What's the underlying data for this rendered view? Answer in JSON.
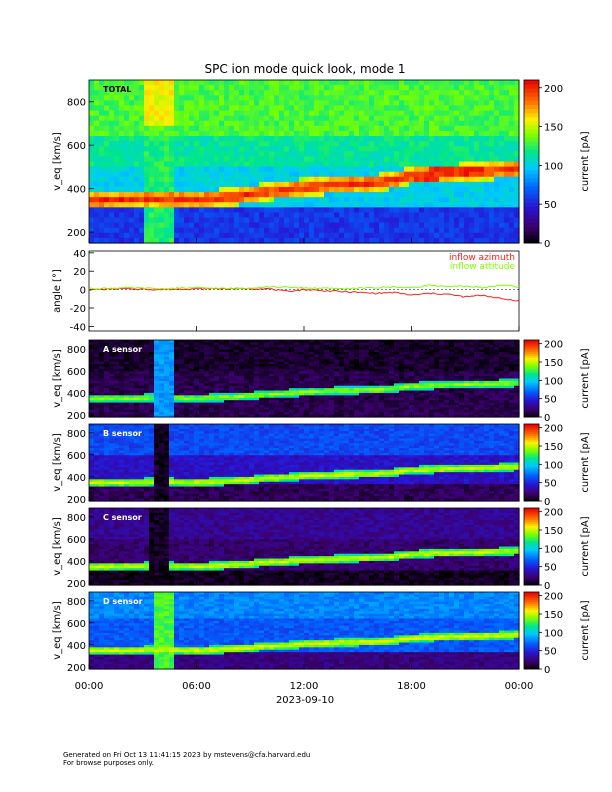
{
  "title": "SPC ion mode quick look, mode 1",
  "date_label": "2023-09-10",
  "footer": {
    "line1": "Generated on Fri Oct 13 11:41:15 2023 by mstevens@cfa.harvard.edu",
    "line2": "For browse purposes only."
  },
  "colors": {
    "red": "#ff2020",
    "green": "#7fff00"
  },
  "chart_data": [
    {
      "type": "heatmap",
      "panel_label": "TOTAL",
      "ylabel": "v_eq [km/s]",
      "yticks": [
        200,
        400,
        600,
        800
      ],
      "ylim": [
        150,
        900
      ],
      "xticks": [
        "00:00",
        "06:00",
        "12:00",
        "18:00",
        "00:00"
      ],
      "xlim_hours": [
        0,
        24
      ],
      "colorbar": {
        "label": "current [pA]",
        "ticks": [
          0,
          50,
          100,
          150,
          200
        ],
        "range": [
          0,
          210
        ]
      },
      "beam_speed_kms": {
        "hours": [
          0,
          2,
          4,
          6,
          8,
          10,
          12,
          14,
          16,
          17,
          18,
          20,
          22,
          24
        ],
        "speed": [
          345,
          350,
          355,
          350,
          360,
          385,
          405,
          420,
          425,
          440,
          460,
          470,
          480,
          490
        ]
      }
    },
    {
      "type": "line",
      "ylabel": "angle [°]",
      "yticks": [
        -40,
        -20,
        0,
        20,
        40
      ],
      "ylim": [
        -45,
        42
      ],
      "xlim_hours": [
        0,
        24
      ],
      "series": [
        {
          "name": "inflow azimuth",
          "color": "#ff2020",
          "hours": [
            0,
            2,
            4,
            6,
            8,
            10,
            11,
            12,
            14,
            16,
            17,
            18,
            19,
            20,
            21,
            22,
            23,
            24
          ],
          "values": [
            0,
            1,
            0,
            1,
            1,
            1,
            -2,
            0,
            -2,
            -4,
            -3,
            -6,
            -4,
            -5,
            -8,
            -6,
            -10,
            -12
          ]
        },
        {
          "name": "inflow attitude",
          "color": "#7fff00",
          "hours": [
            0,
            2,
            4,
            6,
            8,
            10,
            12,
            14,
            16,
            17,
            18,
            19,
            20,
            21,
            22,
            23,
            24
          ],
          "values": [
            1,
            2,
            1,
            2,
            1,
            3,
            2,
            1,
            2,
            3,
            2,
            5,
            3,
            4,
            2,
            5,
            3
          ]
        }
      ]
    },
    {
      "type": "heatmap",
      "panel_label": "A sensor",
      "ylabel": "v_eq [km/s]",
      "yticks": [
        200,
        400,
        600,
        800
      ],
      "ylim": [
        180,
        880
      ],
      "colorbar": {
        "label": "current [pA]",
        "ticks": [
          0,
          50,
          100,
          150,
          200
        ],
        "range": [
          0,
          210
        ]
      }
    },
    {
      "type": "heatmap",
      "panel_label": "B sensor",
      "ylabel": "v_eq [km/s]",
      "yticks": [
        200,
        400,
        600,
        800
      ],
      "ylim": [
        180,
        880
      ],
      "colorbar": {
        "label": "current [pA]",
        "ticks": [
          0,
          50,
          100,
          150,
          200
        ],
        "range": [
          0,
          210
        ]
      }
    },
    {
      "type": "heatmap",
      "panel_label": "C sensor",
      "ylabel": "v_eq [km/s]",
      "yticks": [
        200,
        400,
        600,
        800
      ],
      "ylim": [
        180,
        880
      ],
      "colorbar": {
        "label": "current [pA]",
        "ticks": [
          0,
          50,
          100,
          150,
          200
        ],
        "range": [
          0,
          210
        ]
      }
    },
    {
      "type": "heatmap",
      "panel_label": "D sensor",
      "ylabel": "v_eq [km/s]",
      "yticks": [
        200,
        400,
        600,
        800
      ],
      "ylim": [
        180,
        880
      ],
      "colorbar": {
        "label": "current [pA]",
        "ticks": [
          0,
          50,
          100,
          150,
          200
        ],
        "range": [
          0,
          210
        ]
      }
    }
  ]
}
